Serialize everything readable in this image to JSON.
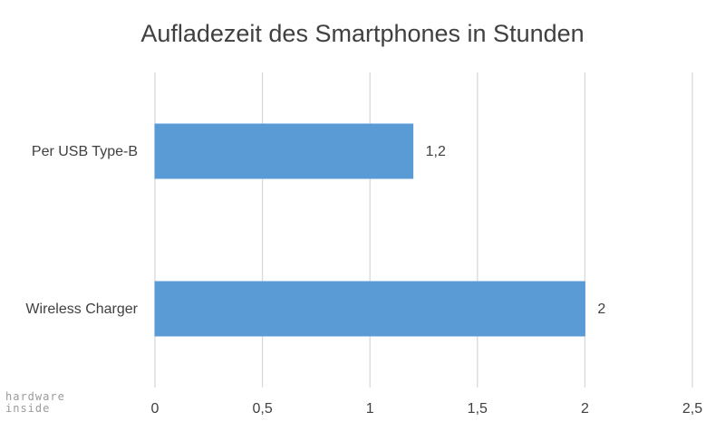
{
  "chart_data": {
    "type": "bar",
    "orientation": "horizontal",
    "title": "Aufladezeit des Smartphones in Stunden",
    "categories": [
      "Per USB Type-B",
      "Wireless Charger"
    ],
    "values": [
      1.2,
      2
    ],
    "value_labels": [
      "1,2",
      "2"
    ],
    "xlim": [
      0,
      2.5
    ],
    "x_ticks": [
      0,
      0.5,
      1,
      1.5,
      2,
      2.5
    ],
    "x_tick_labels": [
      "0",
      "0,5",
      "1",
      "1,5",
      "2",
      "2,5"
    ],
    "grid": "vertical",
    "legend": "none",
    "bar_color": "#5b9bd5"
  },
  "watermark": {
    "line1": "hardware",
    "line2": "inside"
  }
}
